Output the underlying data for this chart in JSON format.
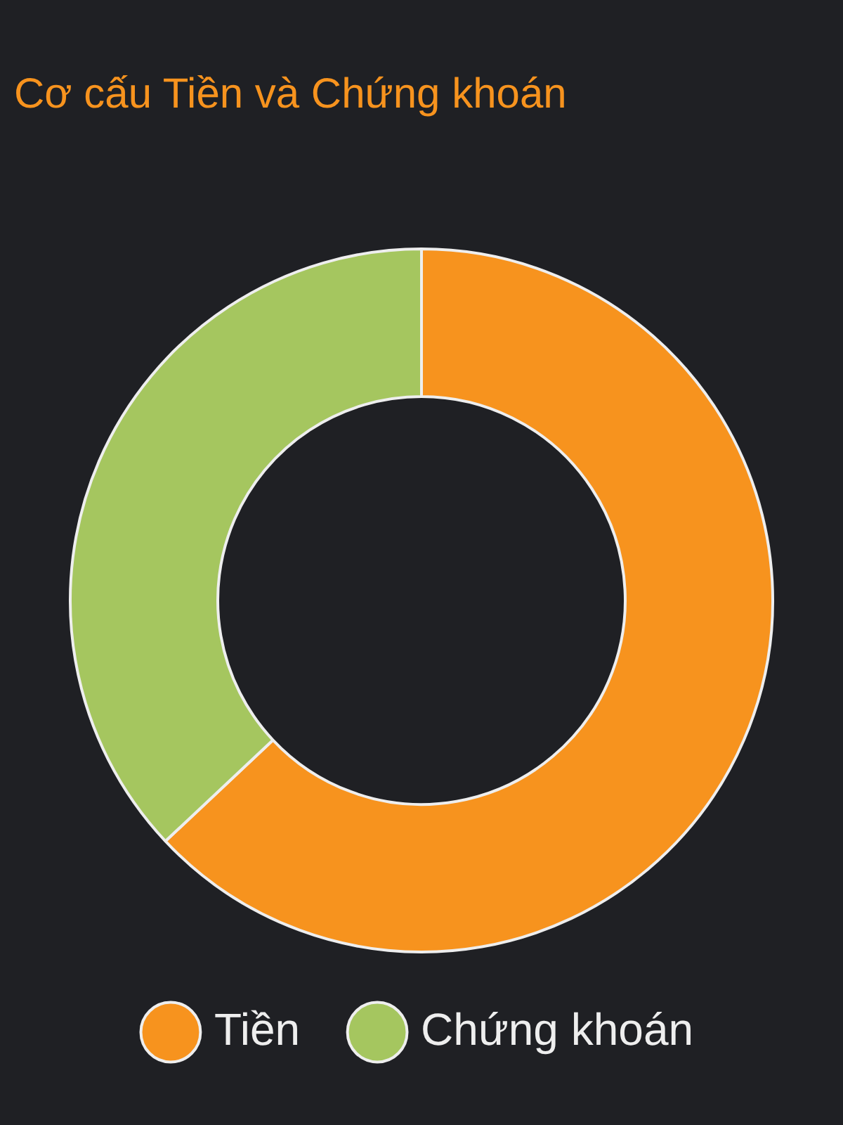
{
  "chart_data": {
    "type": "donut",
    "title": "Cơ cấu Tiền và Chứng khoán",
    "categories": [
      "Tiền",
      "Chứng khoán"
    ],
    "values": [
      63,
      37
    ],
    "colors": [
      "#f7931e",
      "#a5c65f"
    ],
    "legend": "bottom"
  }
}
